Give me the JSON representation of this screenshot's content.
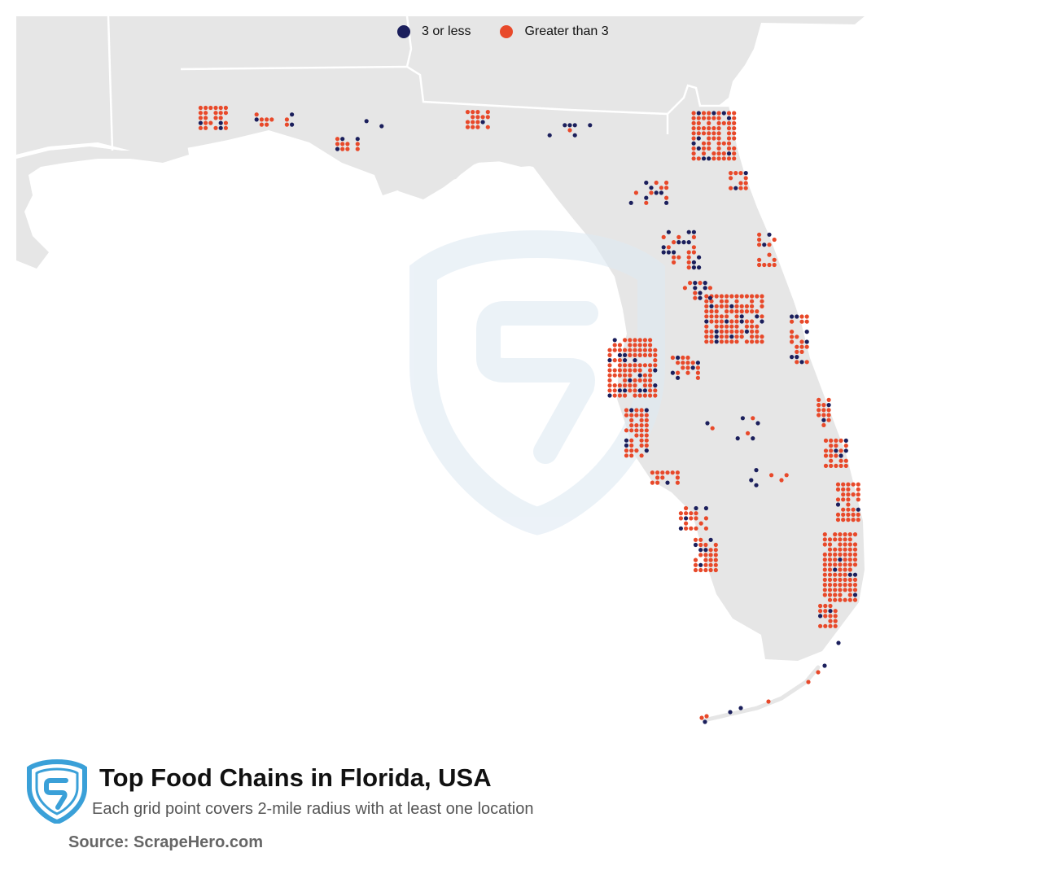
{
  "legend": {
    "items": [
      {
        "label": "3 or less",
        "color": "#1b1f5c"
      },
      {
        "label": "Greater than 3",
        "color": "#e8492a"
      }
    ]
  },
  "title": "Top Food Chains in Florida, USA",
  "subtitle": "Each grid point covers 2-mile radius with at least one location",
  "source": "Source: ScrapeHero.com",
  "colors": {
    "land": "#e6e6e6",
    "state_border": "#ffffff",
    "low_density": "#1b1f5c",
    "high_density": "#e8492a",
    "watermark": "#e4eef6",
    "logo": "#3aa0d8"
  },
  "map": {
    "region": "Florida, USA",
    "icons": [
      "scrapehero-logo",
      "scrapehero-watermark"
    ]
  }
}
